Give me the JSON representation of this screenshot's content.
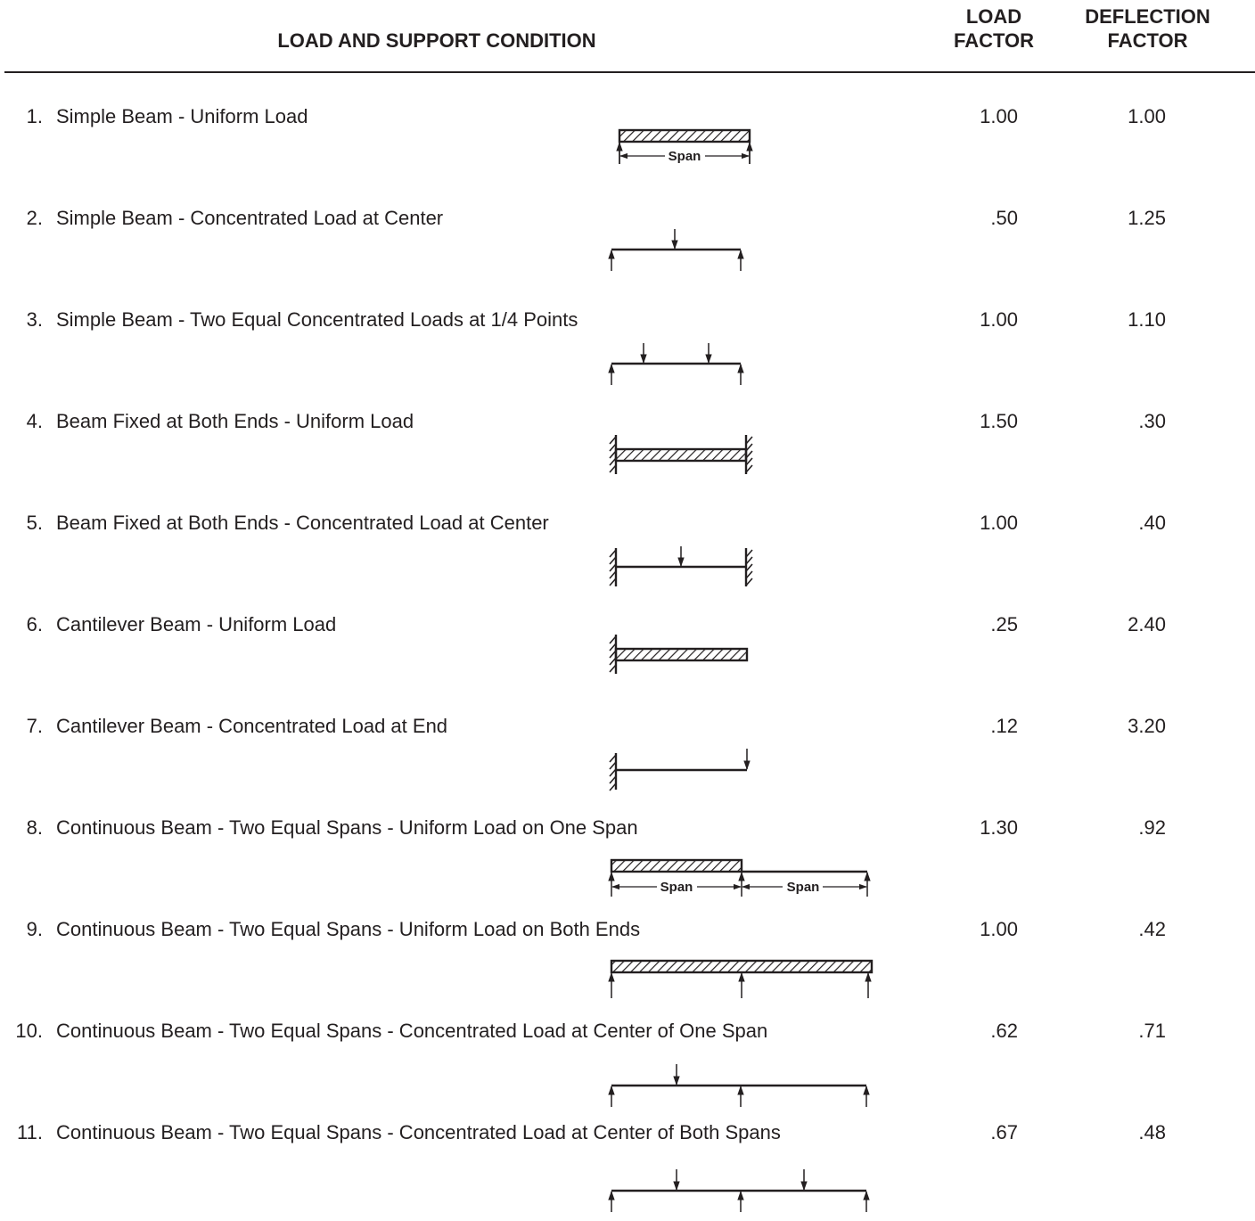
{
  "header": {
    "condition": "LOAD AND SUPPORT CONDITION",
    "load_factor": "LOAD FACTOR",
    "deflection_factor": "DEFLECTION FACTOR"
  },
  "span_label": "Span",
  "rows": [
    {
      "num": "1.",
      "desc": "Simple Beam - Uniform Load",
      "load": "1.00",
      "defl": "1.00"
    },
    {
      "num": "2.",
      "desc": "Simple Beam - Concentrated Load at Center",
      "load": ".50",
      "defl": "1.25"
    },
    {
      "num": "3.",
      "desc": "Simple Beam - Two Equal Concentrated Loads at 1/4 Points",
      "load": "1.00",
      "defl": "1.10"
    },
    {
      "num": "4.",
      "desc": "Beam Fixed at Both Ends - Uniform Load",
      "load": "1.50",
      "defl": ".30"
    },
    {
      "num": "5.",
      "desc": "Beam Fixed at Both Ends - Concentrated Load at Center",
      "load": "1.00",
      "defl": ".40"
    },
    {
      "num": "6.",
      "desc": "Cantilever Beam - Uniform Load",
      "load": ".25",
      "defl": "2.40"
    },
    {
      "num": "7.",
      "desc": "Cantilever Beam - Concentrated Load at End",
      "load": ".12",
      "defl": "3.20"
    },
    {
      "num": "8.",
      "desc": "Continuous Beam - Two Equal Spans - Uniform Load on One Span",
      "load": "1.30",
      "defl": ".92"
    },
    {
      "num": "9.",
      "desc": "Continuous Beam - Two Equal Spans - Uniform Load on Both Ends",
      "load": "1.00",
      "defl": ".42"
    },
    {
      "num": "10.",
      "desc": "Continuous Beam - Two Equal Spans - Concentrated Load at Center of One Span",
      "load": ".62",
      "defl": ".71"
    },
    {
      "num": "11.",
      "desc": "Continuous Beam - Two Equal Spans - Concentrated Load at Center of Both Spans",
      "load": ".67",
      "defl": ".48"
    }
  ]
}
